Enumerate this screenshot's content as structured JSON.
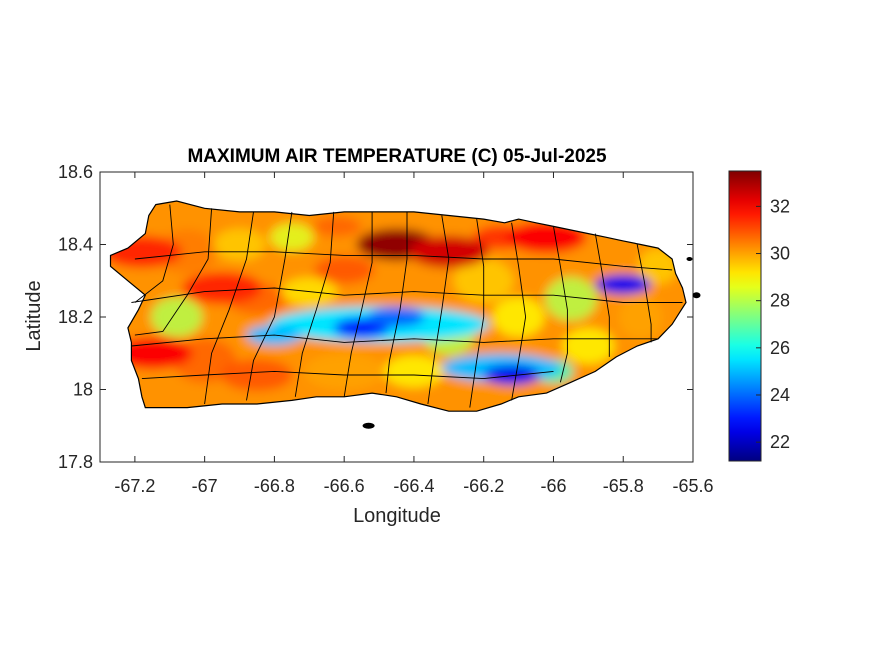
{
  "chart_data": {
    "type": "heatmap",
    "title": "MAXIMUM AIR TEMPERATURE (C) 05-Jul-2025",
    "xlabel": "Longitude",
    "ylabel": "Latitude",
    "xlim": [
      -67.3,
      -65.6
    ],
    "ylim": [
      17.8,
      18.6
    ],
    "xticks": [
      -67.2,
      -67.0,
      -66.8,
      -66.6,
      -66.4,
      -66.2,
      -66.0,
      -65.8,
      -65.6
    ],
    "xtick_labels": [
      "-67.2",
      "-67",
      "-66.8",
      "-66.6",
      "-66.4",
      "-66.2",
      "-66",
      "-65.8",
      "-65.6"
    ],
    "yticks": [
      17.8,
      18.0,
      18.2,
      18.4,
      18.6
    ],
    "ytick_labels": [
      "17.8",
      "18",
      "18.2",
      "18.4",
      "18.6"
    ],
    "colorbar": {
      "range": [
        21.2,
        33.5
      ],
      "ticks": [
        22,
        24,
        26,
        28,
        30,
        32
      ],
      "tick_labels": [
        "22",
        "24",
        "26",
        "28",
        "30",
        "32"
      ],
      "colormap": "jet"
    },
    "grid": false,
    "features": {
      "warm_zones": [
        {
          "lon": -67.18,
          "lat": 18.38,
          "temp": 31.5
        },
        {
          "lon": -67.15,
          "lat": 18.1,
          "temp": 32.0
        },
        {
          "lon": -66.45,
          "lat": 18.4,
          "temp": 33.3
        },
        {
          "lon": -66.3,
          "lat": 18.38,
          "temp": 32.5
        },
        {
          "lon": -66.02,
          "lat": 18.42,
          "temp": 32.0
        },
        {
          "lon": -66.95,
          "lat": 18.28,
          "temp": 31.5
        }
      ],
      "cool_zones": [
        {
          "lon": -66.8,
          "lat": 18.15,
          "temp": 25.0
        },
        {
          "lon": -66.55,
          "lat": 18.17,
          "temp": 23.0
        },
        {
          "lon": -66.45,
          "lat": 18.2,
          "temp": 24.0
        },
        {
          "lon": -66.12,
          "lat": 18.04,
          "temp": 22.5
        },
        {
          "lon": -65.8,
          "lat": 18.29,
          "temp": 22.5
        }
      ],
      "background_temp": 30.2
    }
  }
}
